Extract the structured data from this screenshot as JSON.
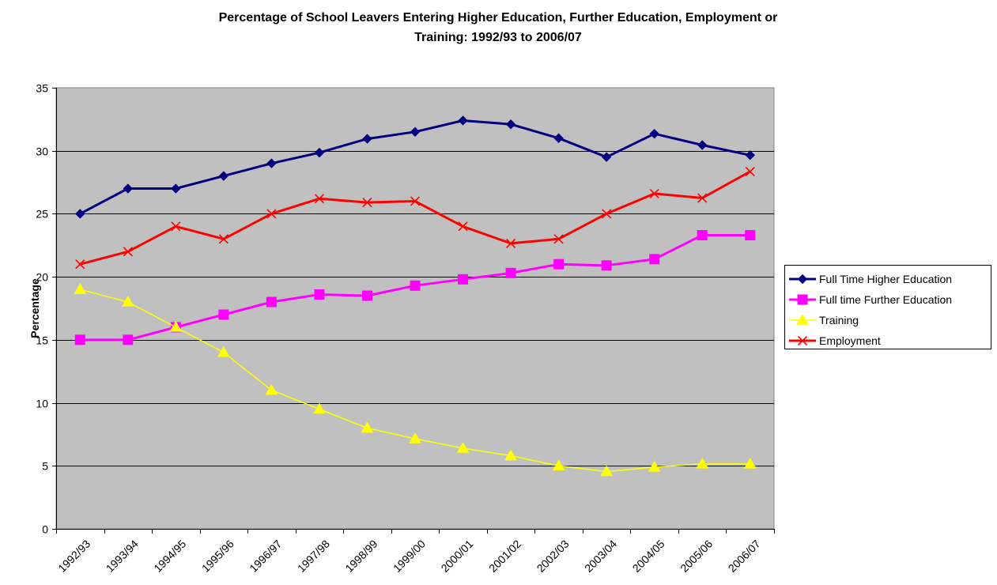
{
  "chart_data": {
    "type": "line",
    "title_lines": [
      "Percentage of School Leavers Entering Higher Education, Further Education, Employment or",
      "Training: 1992/93 to 2006/07"
    ],
    "xlabel": "",
    "ylabel": "Percentage",
    "ylim": [
      0,
      35
    ],
    "yticks": [
      0,
      5,
      10,
      15,
      20,
      25,
      30,
      35
    ],
    "grid": "horizontal",
    "legend_position": "right",
    "plot_background": "#C0C0C0",
    "categories": [
      "1992/93",
      "1993/94",
      "1994/95",
      "1995/96",
      "1996/97",
      "1997/98",
      "1998/99",
      "1999/00",
      "2000/01",
      "2001/02",
      "2002/03",
      "2003/04",
      "2004/05",
      "2005/06",
      "2006/07"
    ],
    "series": [
      {
        "name": "Full Time Higher Education",
        "color": "#000080",
        "marker": "diamond",
        "line_width": 3,
        "values": [
          25,
          27,
          27,
          28,
          29,
          29.85,
          30.95,
          31.5,
          32.4,
          32.1,
          31,
          29.5,
          31.35,
          30.45,
          29.65
        ]
      },
      {
        "name": "Full time Further Education",
        "color": "#FF00FF",
        "marker": "square",
        "line_width": 3,
        "values": [
          15,
          15,
          16,
          17,
          18,
          18.6,
          18.5,
          19.3,
          19.8,
          20.3,
          21,
          20.9,
          21.4,
          23.3,
          23.3
        ]
      },
      {
        "name": "Training",
        "color": "#FFFF00",
        "marker": "triangle",
        "line_width": 1.5,
        "values": [
          19,
          18,
          16,
          14,
          11,
          9.5,
          8,
          7.15,
          6.4,
          5.8,
          5,
          4.55,
          4.9,
          5.15,
          5.15
        ]
      },
      {
        "name": "Employment",
        "color": "#FF0000",
        "marker": "x",
        "line_width": 3,
        "values": [
          21,
          22,
          24,
          23,
          25,
          26.2,
          25.9,
          26,
          24,
          22.65,
          23,
          25,
          26.6,
          26.25,
          28.35
        ]
      }
    ]
  }
}
